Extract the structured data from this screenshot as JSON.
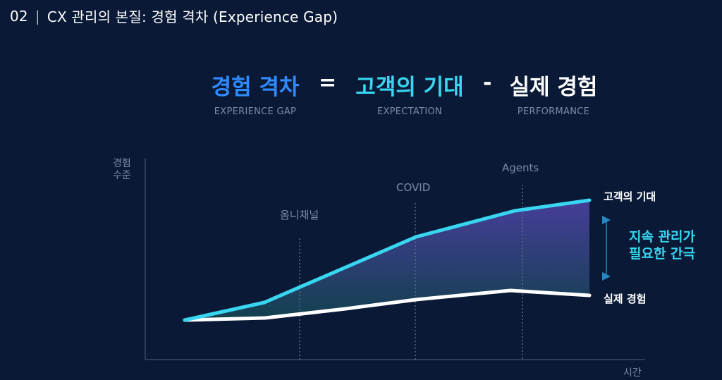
{
  "header": {
    "number": "02",
    "divider": "|",
    "title": "CX 관리의 본질: 경험 격차 (Experience Gap)"
  },
  "formula": {
    "gap": {
      "ko": "경험 격차",
      "en": "EXPERIENCE GAP",
      "color": "#2f8bff"
    },
    "equals": "=",
    "expectation": {
      "ko": "고객의 기대",
      "en": "EXPECTATION",
      "color": "#38d6f0"
    },
    "minus": "-",
    "performance": {
      "ko": "실제 경험",
      "en": "PERFORMANCE",
      "color": "#ffffff"
    }
  },
  "chart": {
    "y_axis_label_line1": "경험",
    "y_axis_label_line2": "수준",
    "x_axis_label": "시간",
    "milestones": [
      "옴니채널",
      "COVID",
      "Agents"
    ],
    "series_expectation_label": "고객의 기대",
    "series_performance_label": "실제 경험",
    "gap_note_line1": "지속 관리가",
    "gap_note_line2": "필요한 간극",
    "colors": {
      "expectation": "#38d6f0",
      "performance": "#ffffff",
      "gap_top": "#4a3f9e",
      "gap_bottom": "#12424f",
      "axis": "#3a4a66",
      "milestone": "#5a6b88",
      "arrow": "#2a86c2"
    }
  }
}
